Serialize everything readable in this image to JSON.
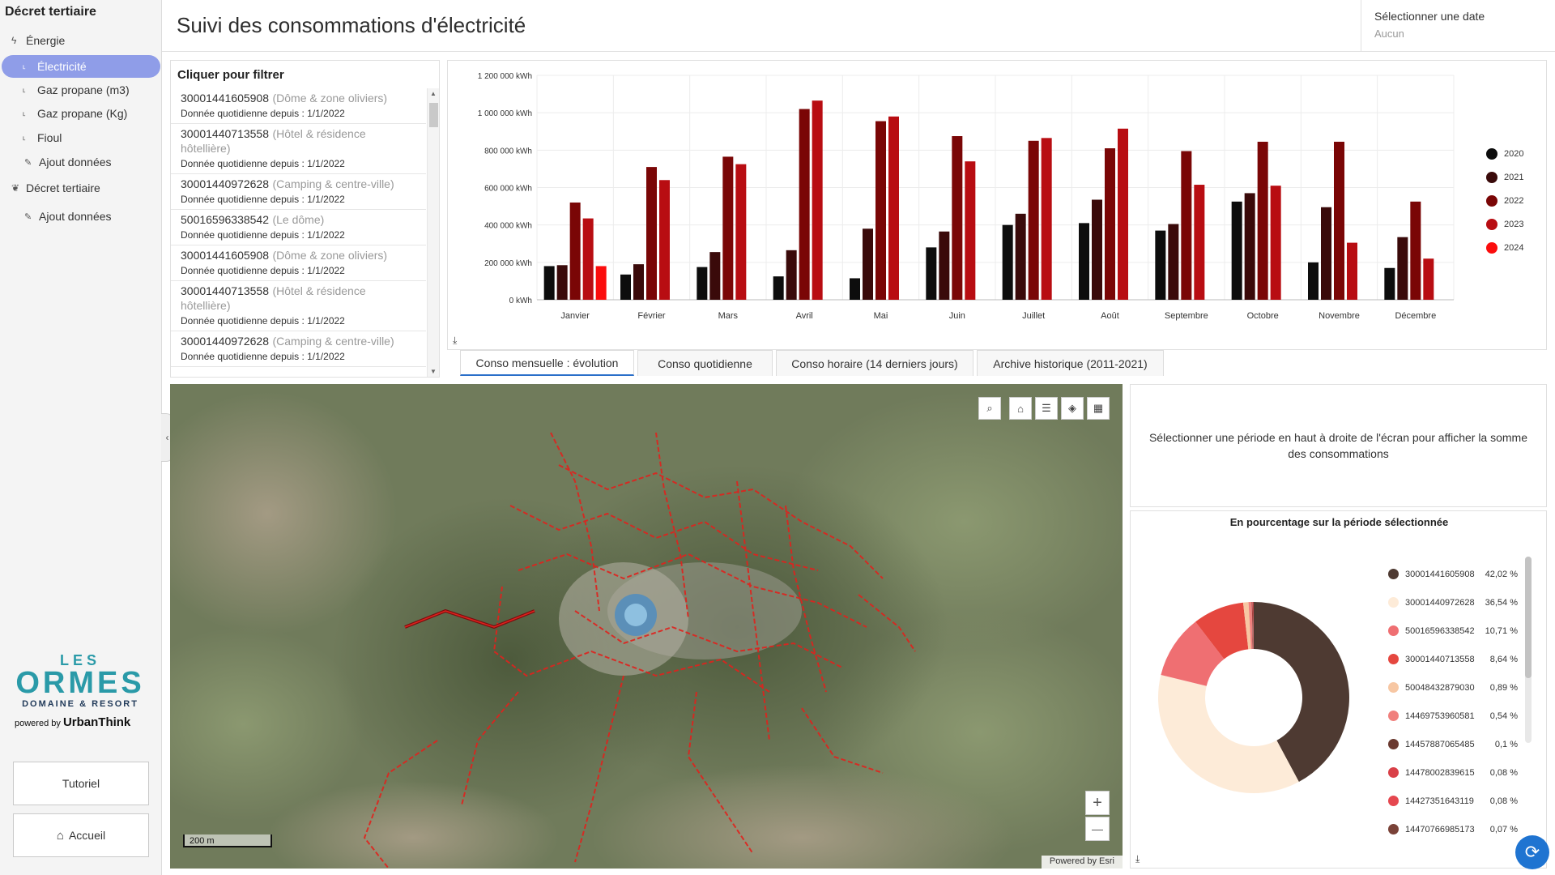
{
  "sidebar": {
    "title": "Décret tertiaire",
    "items": [
      {
        "label": "Énergie",
        "icon": "bolt-icon",
        "glyph": "ϟ",
        "level": 0
      },
      {
        "label": "Électricité",
        "icon": "subitem-icon",
        "glyph": "˪",
        "level": 1,
        "active": true
      },
      {
        "label": "Gaz propane (m3)",
        "icon": "subitem-icon",
        "glyph": "˪",
        "level": 1
      },
      {
        "label": "Gaz propane (Kg)",
        "icon": "subitem-icon",
        "glyph": "˪",
        "level": 1
      },
      {
        "label": "Fioul",
        "icon": "subitem-icon",
        "glyph": "˪",
        "level": 1
      },
      {
        "label": "Ajout données",
        "icon": "edit-icon",
        "glyph": "✎",
        "level": 1
      },
      {
        "label": "Décret tertiaire",
        "icon": "leaf-icon",
        "glyph": "❦",
        "level": 0
      },
      {
        "label": "Ajout données",
        "icon": "edit-icon",
        "glyph": "✎",
        "level": 1
      }
    ],
    "logo": {
      "line1": "LES",
      "line2": "ORMES",
      "line3": "DOMAINE & RESORT",
      "powered": "powered by",
      "brand": "UrbanThink"
    },
    "tutorial_label": "Tutoriel",
    "home_label": "Accueil",
    "home_glyph": "⌂"
  },
  "header": {
    "title": "Suivi des consommations d'électricité",
    "date_label": "Sélectionner une date",
    "date_value": "Aucun"
  },
  "filter": {
    "title": "Cliquer pour filtrer",
    "items": [
      {
        "id": "30001441605908",
        "label": "(Dôme & zone oliviers)",
        "sub": "Donnée quotidienne depuis : 1/1/2022"
      },
      {
        "id": "30001440713558",
        "label": "(Hôtel & résidence hôtellière)",
        "sub": "Donnée quotidienne depuis : 1/1/2022"
      },
      {
        "id": "30001440972628",
        "label": "(Camping & centre-ville)",
        "sub": "Donnée quotidienne depuis : 1/1/2022"
      },
      {
        "id": "50016596338542",
        "label": "(Le dôme)",
        "sub": "Donnée quotidienne depuis : 1/1/2022"
      },
      {
        "id": "30001441605908",
        "label": "(Dôme & zone oliviers)",
        "sub": "Donnée quotidienne depuis : 1/1/2022"
      },
      {
        "id": "30001440713558",
        "label": "(Hôtel & résidence hôtellière)",
        "sub": "Donnée quotidienne depuis : 1/1/2022"
      },
      {
        "id": "30001440972628",
        "label": "(Camping & centre-ville)",
        "sub": "Donnée quotidienne depuis : 1/1/2022"
      }
    ]
  },
  "chart_data": {
    "type": "bar",
    "categories": [
      "Janvier",
      "Février",
      "Mars",
      "Avril",
      "Mai",
      "Juin",
      "Juillet",
      "Août",
      "Septembre",
      "Octobre",
      "Novembre",
      "Décembre"
    ],
    "series": [
      {
        "name": "2020",
        "color": "#0d0d0d",
        "values": [
          180000,
          135000,
          175000,
          125000,
          115000,
          280000,
          400000,
          410000,
          370000,
          525000,
          200000,
          170000
        ]
      },
      {
        "name": "2021",
        "color": "#3a0a0a",
        "values": [
          185000,
          190000,
          255000,
          265000,
          380000,
          365000,
          460000,
          535000,
          405000,
          570000,
          495000,
          335000
        ]
      },
      {
        "name": "2022",
        "color": "#7a0606",
        "values": [
          520000,
          710000,
          765000,
          1020000,
          955000,
          875000,
          850000,
          810000,
          795000,
          845000,
          845000,
          525000
        ]
      },
      {
        "name": "2023",
        "color": "#b80d12",
        "values": [
          435000,
          640000,
          725000,
          1065000,
          980000,
          740000,
          865000,
          915000,
          615000,
          610000,
          305000,
          220000
        ]
      },
      {
        "name": "2024",
        "color": "#fb0d0d",
        "values": [
          180000,
          null,
          null,
          null,
          null,
          null,
          null,
          null,
          null,
          null,
          null,
          null
        ]
      }
    ],
    "yticks": [
      "0 kWh",
      "200 000 kWh",
      "400 000 kWh",
      "600 000 kWh",
      "800 000 kWh",
      "1 000 000 kWh",
      "1 200 000 kWh"
    ],
    "ylim": [
      0,
      1200000
    ],
    "grid": true,
    "legend": "right"
  },
  "tabs": [
    {
      "label": "Conso mensuelle : évolution",
      "active": true
    },
    {
      "label": "Conso quotidienne"
    },
    {
      "label": "Conso horaire (14 derniers jours)"
    },
    {
      "label": "Archive historique (2011-2021)"
    }
  ],
  "map": {
    "scale_label": "200 m",
    "attribution": "Powered by Esri",
    "tools": [
      {
        "name": "search-icon",
        "glyph": "⌕"
      },
      {
        "name": "home-icon",
        "glyph": "⌂"
      },
      {
        "name": "list-icon",
        "glyph": "☰"
      },
      {
        "name": "layers-icon",
        "glyph": "◈"
      },
      {
        "name": "basemap-gallery-icon",
        "glyph": "▦"
      }
    ],
    "zoom_in": "+",
    "zoom_out": "—"
  },
  "info_text": "Sélectionner une période en haut à droite de l'écran pour afficher la somme des consommations",
  "donut": {
    "title": "En pourcentage sur la période sélectionnée",
    "slices": [
      {
        "label": "30001441605908",
        "value": 42.02,
        "pct": "42,02 %",
        "color": "#4e3a32"
      },
      {
        "label": "30001440972628",
        "value": 36.54,
        "pct": "36,54 %",
        "color": "#fdebd8"
      },
      {
        "label": "50016596338542",
        "value": 10.71,
        "pct": "10,71 %",
        "color": "#ef6f72"
      },
      {
        "label": "30001440713558",
        "value": 8.64,
        "pct": "8,64 %",
        "color": "#e5473f"
      },
      {
        "label": "50048432879030",
        "value": 0.89,
        "pct": "0,89 %",
        "color": "#f7c7a3"
      },
      {
        "label": "14469753960581",
        "value": 0.54,
        "pct": "0,54 %",
        "color": "#f0807d"
      },
      {
        "label": "14457887065485",
        "value": 0.1,
        "pct": "0,1 %",
        "color": "#6b3a30"
      },
      {
        "label": "14478002839615",
        "value": 0.08,
        "pct": "0,08 %",
        "color": "#d94048"
      },
      {
        "label": "14427351643119",
        "value": 0.08,
        "pct": "0,08 %",
        "color": "#e5474f"
      },
      {
        "label": "14470766985173",
        "value": 0.07,
        "pct": "0,07 %",
        "color": "#7a4238"
      }
    ]
  },
  "download_glyph": "⤓",
  "refresh_glyph": "⟳"
}
